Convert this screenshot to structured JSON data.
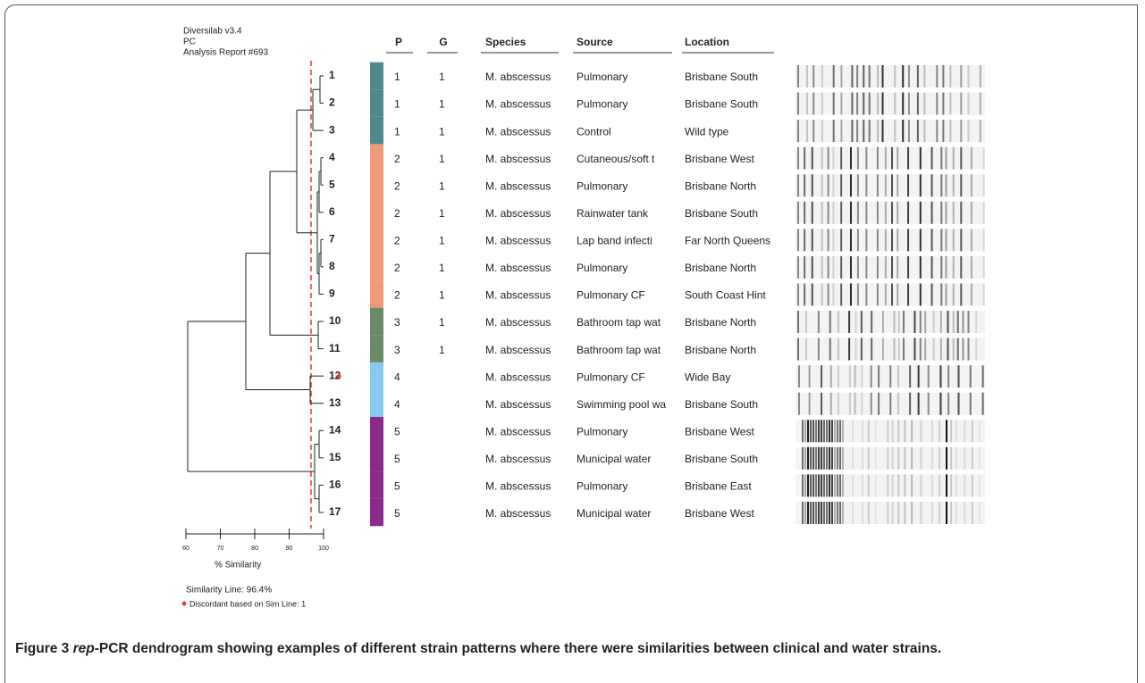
{
  "header": {
    "software": "Diversilab v3.4",
    "line2": "PC",
    "report": "Analysis Report #693"
  },
  "table": {
    "columns": [
      "P",
      "G",
      "Species",
      "Source",
      "Location"
    ],
    "rows": [
      {
        "label": 1,
        "P": 1,
        "G": 1,
        "species": "M. abscessus",
        "source": "Pulmonary",
        "location": "Brisbane South"
      },
      {
        "label": 2,
        "P": 1,
        "G": 1,
        "species": "M. abscessus",
        "source": "Pulmonary",
        "location": "Brisbane South"
      },
      {
        "label": 3,
        "P": 1,
        "G": 1,
        "species": "M. abscessus",
        "source": "Control",
        "location": "Wild type"
      },
      {
        "label": 4,
        "P": 2,
        "G": 1,
        "species": "M. abscessus",
        "source": "Cutaneous/soft t",
        "location": "Brisbane West"
      },
      {
        "label": 5,
        "P": 2,
        "G": 1,
        "species": "M. abscessus",
        "source": "Pulmonary",
        "location": "Brisbane North"
      },
      {
        "label": 6,
        "P": 2,
        "G": 1,
        "species": "M. abscessus",
        "source": "Rainwater tank",
        "location": "Brisbane South"
      },
      {
        "label": 7,
        "P": 2,
        "G": 1,
        "species": "M. abscessus",
        "source": "Lap band infecti",
        "location": "Far North Queens"
      },
      {
        "label": 8,
        "P": 2,
        "G": 1,
        "species": "M. abscessus",
        "source": "Pulmonary",
        "location": "Brisbane North"
      },
      {
        "label": 9,
        "P": 2,
        "G": 1,
        "species": "M. abscessus",
        "source": "Pulmonary CF",
        "location": "South Coast Hint"
      },
      {
        "label": 10,
        "P": 3,
        "G": 1,
        "species": "M. abscessus",
        "source": "Bathroom tap wat",
        "location": "Brisbane North"
      },
      {
        "label": 11,
        "P": 3,
        "G": 1,
        "species": "M. abscessus",
        "source": "Bathroom tap wat",
        "location": "Brisbane North"
      },
      {
        "label": 12,
        "P": 4,
        "species": "M. abscessus",
        "source": "Pulmonary CF",
        "location": "Wide Bay"
      },
      {
        "label": 13,
        "P": 4,
        "species": "M. abscessus",
        "source": "Swimming pool wa",
        "location": "Brisbane South"
      },
      {
        "label": 14,
        "P": 5,
        "species": "M. abscessus",
        "source": "Pulmonary",
        "location": "Brisbane West"
      },
      {
        "label": 15,
        "P": 5,
        "species": "M. abscessus",
        "source": "Municipal water",
        "location": "Brisbane South"
      },
      {
        "label": 16,
        "P": 5,
        "species": "M. abscessus",
        "source": "Pulmonary",
        "location": "Brisbane East"
      },
      {
        "label": 17,
        "P": 5,
        "species": "M. abscessus",
        "source": "Municipal water",
        "location": "Brisbane West"
      }
    ]
  },
  "scale": {
    "ticks": [
      60,
      70,
      80,
      90,
      100
    ],
    "label": "% Similarity"
  },
  "legend": {
    "similarity_line": "Similarity Line: 96.4%",
    "discordant": "Discordant based on Sim Line: 1"
  },
  "caption": {
    "label": "Figure 3",
    "italic": "rep",
    "text": "-PCR dendrogram showing examples of different strain patterns where there were similarities between clinical and water strains."
  }
}
